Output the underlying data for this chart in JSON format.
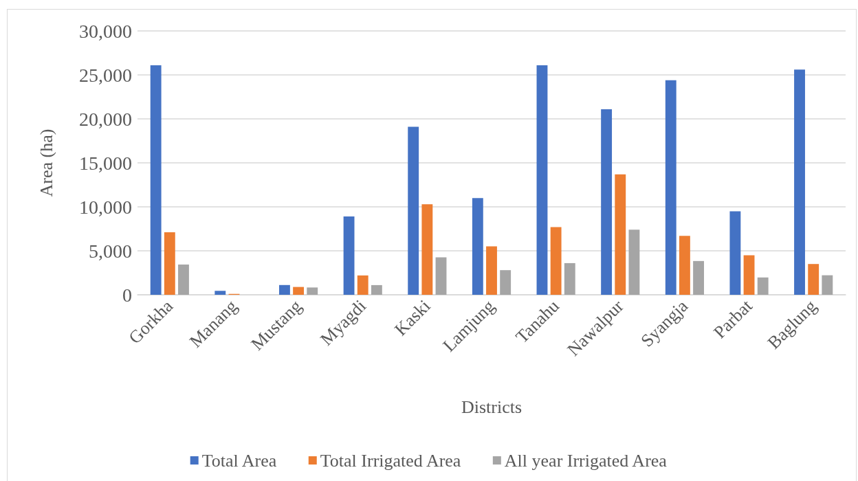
{
  "chart_data": {
    "type": "bar",
    "xlabel": "Districts",
    "ylabel": "Area (ha)",
    "categories": [
      "Gorkha",
      "Manang",
      "Mustang",
      "Myagdi",
      "Kaski",
      "Lamjung",
      "Tanahu",
      "Nawalpur",
      "Syangja",
      "Parbat",
      "Baglung"
    ],
    "series": [
      {
        "name": "Total Area",
        "color": "#4472c4",
        "values": [
          26100,
          450,
          1110,
          8900,
          19100,
          11000,
          26100,
          21100,
          24400,
          9500,
          25600
        ]
      },
      {
        "name": "Total Irrigated Area",
        "color": "#ed7d31",
        "values": [
          7100,
          100,
          890,
          2200,
          10300,
          5500,
          7700,
          13700,
          6700,
          4500,
          3500
        ]
      },
      {
        "name": "All year Irrigated Area",
        "color": "#a5a5a5",
        "values": [
          3440,
          0,
          830,
          1100,
          4250,
          2800,
          3600,
          7400,
          3840,
          1970,
          2220
        ]
      }
    ],
    "ylim": [
      0,
      30000
    ],
    "yticks": [
      0,
      {
        "value": 5000,
        "label": "5,000"
      },
      {
        "value": 10000,
        "label": "10,000"
      },
      {
        "value": 15000,
        "label": "15,000"
      },
      {
        "value": 20000,
        "label": "20,000"
      },
      {
        "value": 25000,
        "label": "25,000"
      },
      {
        "value": 30000,
        "label": "30,000"
      }
    ],
    "grid": "y",
    "legend": "bottom"
  }
}
